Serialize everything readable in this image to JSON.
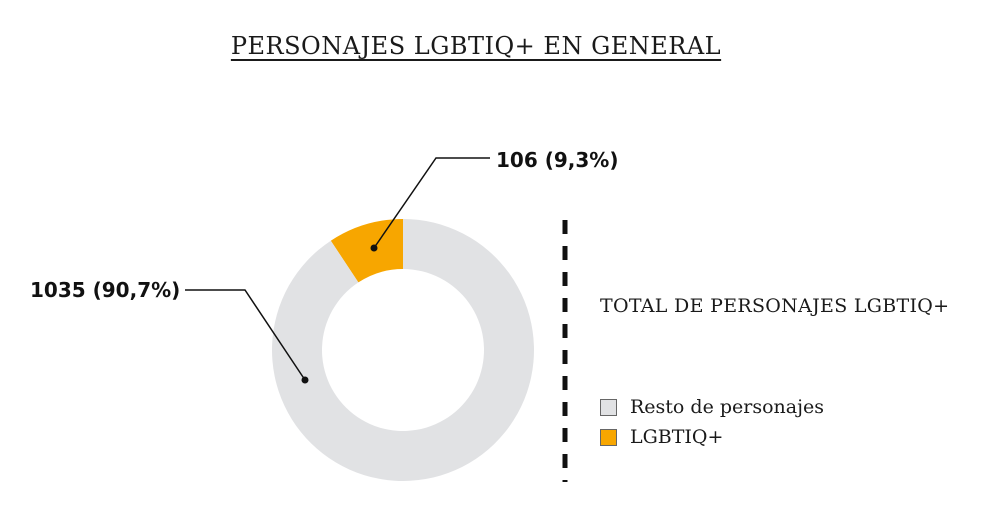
{
  "title": "PERSONAJES LGBTIQ+ EN GENERAL",
  "chart_data": {
    "type": "pie",
    "donut": true,
    "title": "PERSONAJES LGBTIQ+ EN GENERAL",
    "legend_title": "TOTAL DE PERSONAJES LGBTIQ+",
    "legend_placement": "right",
    "slices": [
      {
        "name": "LGBTIQ+",
        "value": 106,
        "percent": 9.3,
        "label": "106 (9,3%)",
        "color": "#F7A600"
      },
      {
        "name": "Resto de personajes",
        "value": 1035,
        "percent": 90.7,
        "label": "1035 (90,7%)",
        "color": "#E1E2E4"
      }
    ],
    "legend": [
      "Resto de personajes",
      "LGBTIQ+"
    ]
  }
}
